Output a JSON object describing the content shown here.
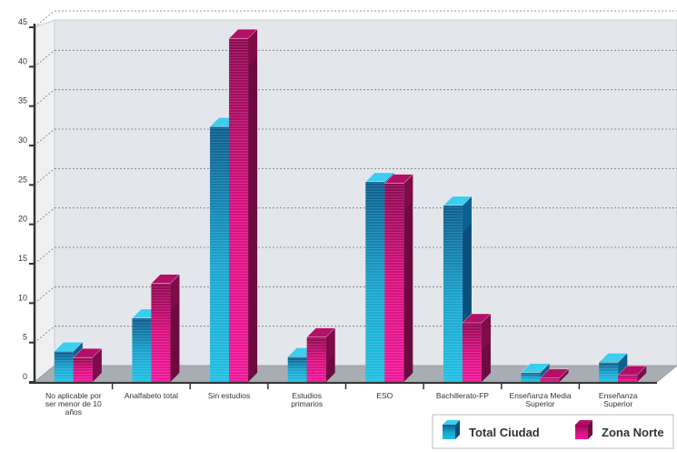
{
  "chart_data": {
    "type": "bar",
    "title": "",
    "xlabel": "",
    "ylabel": "",
    "ylim": [
      0,
      45
    ],
    "yticks": [
      0,
      5,
      10,
      15,
      20,
      25,
      30,
      35,
      40,
      45
    ],
    "grid": true,
    "legend": "bottom-right",
    "categories": [
      "No aplicable por ser menor de 10 años",
      "Analfabeto total",
      "Sin estudios",
      "Estudios primarios",
      "ESO",
      "Bachillerato-FP",
      "Enseñanza Media Superior",
      "Enseñanza Superior"
    ],
    "series": [
      {
        "name": "Total Ciudad",
        "values": [
          3.9,
          8.1,
          32.4,
          3.2,
          25.4,
          22.4,
          1.2,
          2.5
        ]
      },
      {
        "name": "Zona Norte",
        "values": [
          3.1,
          12.5,
          43.6,
          5.7,
          25.2,
          7.5,
          0.5,
          0.9
        ]
      }
    ]
  },
  "colors": {
    "total_ciudad": "#1ab4d6",
    "zona_norte": "#e0117f",
    "wall": "#e3e6ea",
    "floor": "#a8adb3",
    "axis": "#333333"
  }
}
